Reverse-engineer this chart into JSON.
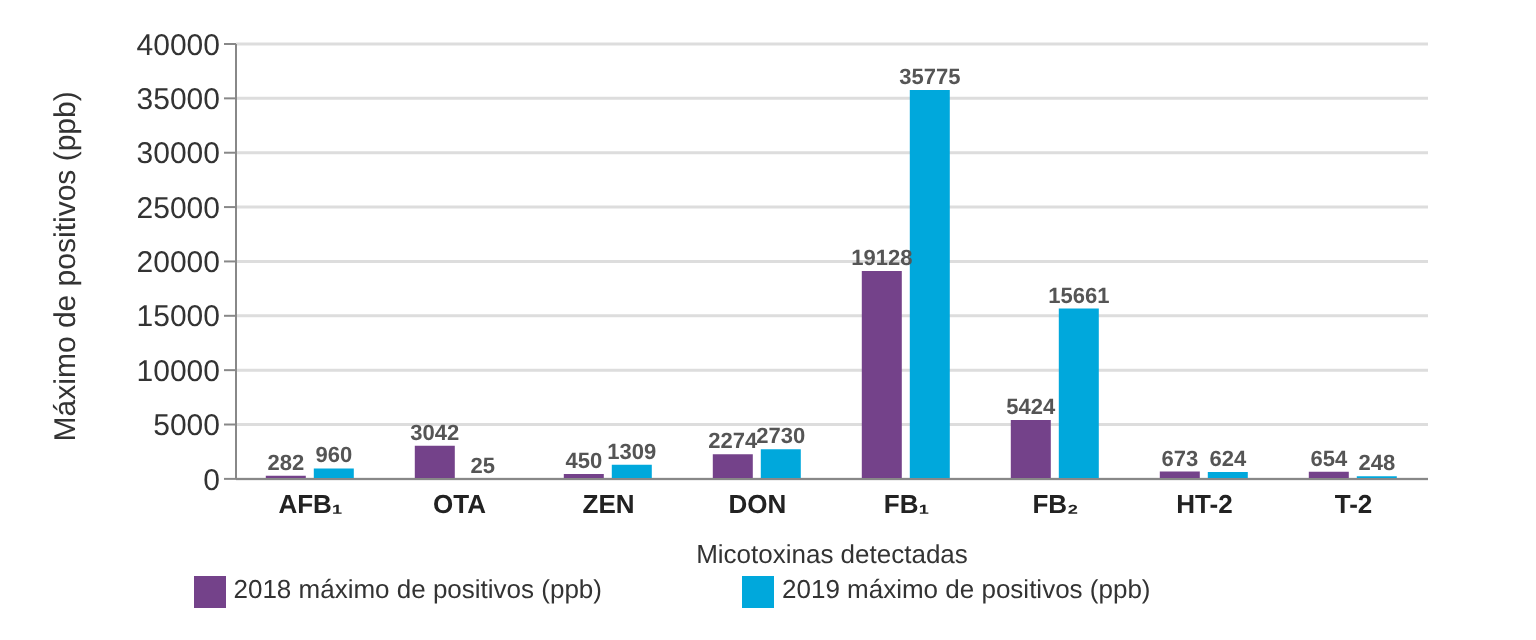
{
  "chart_data": {
    "type": "bar",
    "xlabel": "Micotoxinas detectadas",
    "ylabel": "Máximo de positivos (ppb)",
    "categories": [
      "AFB₁",
      "OTA",
      "ZEN",
      "DON",
      "FB₁",
      "FB₂",
      "HT-2",
      "T-2"
    ],
    "series": [
      {
        "name": "2018 máximo de positivos (ppb)",
        "color": "#74428a",
        "values": [
          282,
          3042,
          450,
          2274,
          19128,
          5424,
          673,
          654
        ]
      },
      {
        "name": "2019 máximo de positivos (ppb)",
        "color": "#00a8dc",
        "values": [
          960,
          25,
          1309,
          2730,
          35775,
          15661,
          624,
          248
        ]
      }
    ],
    "ylim": [
      0,
      40000
    ],
    "yticks": [
      0,
      5000,
      10000,
      15000,
      20000,
      25000,
      30000,
      35000,
      40000
    ],
    "grid": "y",
    "legend": "bottom",
    "data_labels": true
  }
}
